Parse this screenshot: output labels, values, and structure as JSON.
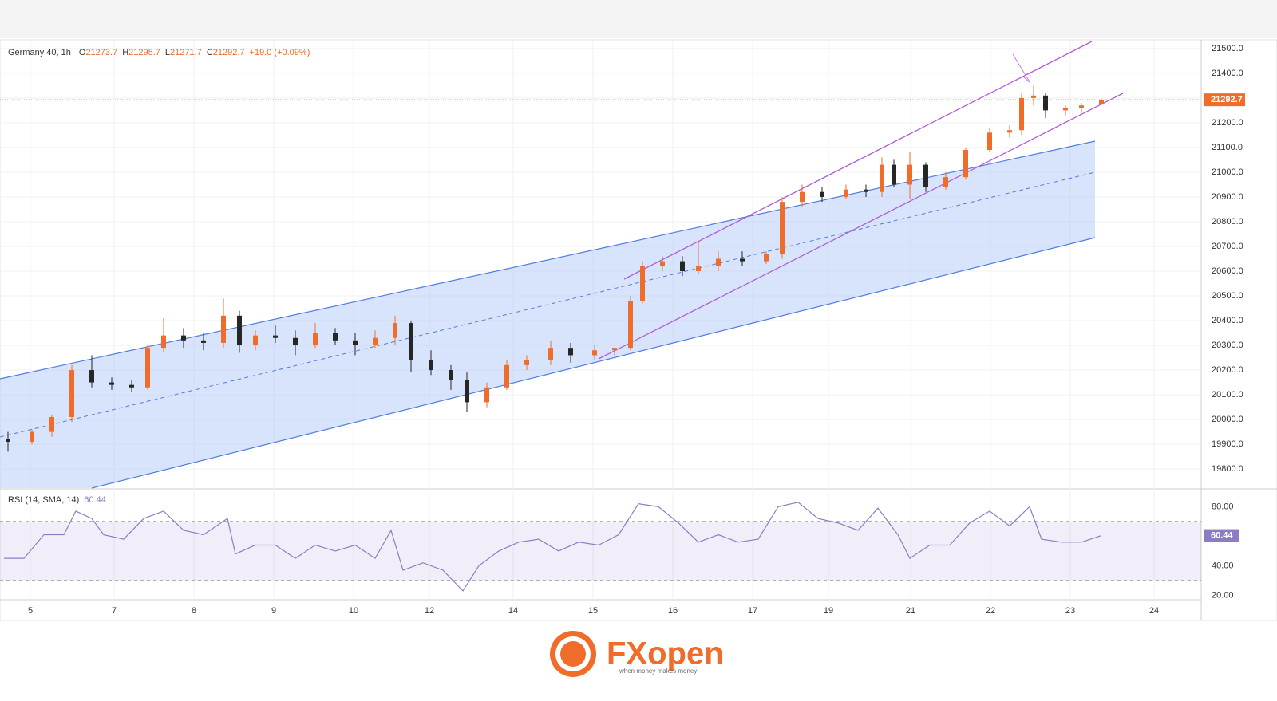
{
  "chart_data": {
    "type": "candlestick",
    "symbol": "Germany 40, 1h",
    "ohlc_labels": [
      "O",
      "H",
      "L",
      "C"
    ],
    "change": "+19.0 (+0.09%)",
    "up_color": "#ef6c2b",
    "down_color": "#262626",
    "x": [
      0.1,
      0.4,
      0.65,
      0.9,
      1.15,
      1.4,
      1.65,
      1.85,
      2.05,
      2.3,
      2.55,
      2.8,
      3.0,
      3.2,
      3.45,
      3.7,
      3.95,
      4.2,
      4.45,
      4.7,
      4.95,
      5.15,
      5.4,
      5.65,
      5.85,
      6.1,
      6.35,
      6.6,
      6.9,
      7.15,
      7.45,
      7.7,
      7.9,
      8.05,
      8.3,
      8.55,
      8.75,
      9.0,
      9.3,
      9.6,
      9.8,
      10.05,
      10.3,
      10.6,
      10.85,
      11.05,
      11.2,
      11.4,
      11.6,
      11.85,
      12.1,
      12.4,
      12.65,
      12.8,
      12.95,
      13.1,
      13.35,
      13.55,
      13.8
    ],
    "open": [
      19920,
      19910,
      19950,
      20010,
      20200,
      20150,
      20140,
      20130,
      20290,
      20340,
      20320,
      20310,
      20420,
      20300,
      20340,
      20330,
      20300,
      20350,
      20320,
      20300,
      20330,
      20390,
      20240,
      20200,
      20160,
      20070,
      20130,
      20220,
      20240,
      20290,
      20260,
      20280,
      20290,
      20480,
      20620,
      20640,
      20600,
      20620,
      20650,
      20640,
      20670,
      20880,
      20920,
      20900,
      20930,
      20920,
      21030,
      20950,
      21030,
      20940,
      20980,
      21090,
      21160,
      21170,
      21300,
      21310,
      21250,
      21260,
      21273.7
    ],
    "high": [
      19950,
      19960,
      20020,
      20220,
      20260,
      20170,
      20160,
      20300,
      20410,
      20370,
      20350,
      20490,
      20440,
      20360,
      20380,
      20360,
      20390,
      20370,
      20350,
      20360,
      20420,
      20400,
      20280,
      20220,
      20190,
      20150,
      20240,
      20260,
      20320,
      20310,
      20300,
      20290,
      20500,
      20640,
      20660,
      20660,
      20720,
      20680,
      20680,
      20680,
      20900,
      20950,
      20940,
      20950,
      20950,
      21060,
      21050,
      21080,
      21040,
      21000,
      21100,
      21180,
      21190,
      21320,
      21350,
      21320,
      21270,
      21280,
      21295.7
    ],
    "low": [
      19870,
      19900,
      19930,
      19990,
      20130,
      20120,
      20110,
      20120,
      20270,
      20290,
      20280,
      20290,
      20270,
      20280,
      20310,
      20260,
      20290,
      20300,
      20260,
      20290,
      20300,
      20190,
      20180,
      20120,
      20030,
      20050,
      20120,
      20200,
      20220,
      20230,
      20240,
      20260,
      20280,
      20470,
      20600,
      20580,
      20590,
      20600,
      20620,
      20630,
      20650,
      20860,
      20880,
      20890,
      20900,
      20900,
      20940,
      20890,
      20920,
      20930,
      20970,
      21080,
      21140,
      21150,
      21270,
      21220,
      21230,
      21240,
      21271.7
    ],
    "close": [
      19910,
      19950,
      20010,
      20200,
      20150,
      20140,
      20130,
      20290,
      20340,
      20320,
      20310,
      20420,
      20300,
      20340,
      20330,
      20300,
      20350,
      20320,
      20300,
      20330,
      20390,
      20240,
      20200,
      20160,
      20070,
      20130,
      20220,
      20240,
      20290,
      20260,
      20280,
      20290,
      20480,
      20620,
      20640,
      20600,
      20620,
      20650,
      20640,
      20670,
      20880,
      20920,
      20900,
      20930,
      20920,
      21030,
      20950,
      21030,
      20940,
      20980,
      21090,
      21160,
      21170,
      21300,
      21310,
      21250,
      21260,
      21270,
      21292.7
    ],
    "xlim": [
      0,
      15.05
    ],
    "xticks": [
      {
        "value": 0.38,
        "label": "5"
      },
      {
        "value": 1.43,
        "label": "7"
      },
      {
        "value": 2.43,
        "label": "8"
      },
      {
        "value": 3.43,
        "label": "9"
      },
      {
        "value": 4.43,
        "label": "10"
      },
      {
        "value": 5.38,
        "label": "12"
      },
      {
        "value": 6.43,
        "label": "14"
      },
      {
        "value": 7.43,
        "label": "15"
      },
      {
        "value": 8.43,
        "label": "16"
      },
      {
        "value": 9.43,
        "label": "17"
      },
      {
        "value": 10.38,
        "label": "19"
      },
      {
        "value": 11.41,
        "label": "21"
      },
      {
        "value": 12.41,
        "label": "22"
      },
      {
        "value": 13.41,
        "label": "23"
      },
      {
        "value": 14.46,
        "label": "24"
      }
    ],
    "ylim": [
      19723,
      21535
    ],
    "yticks": [
      {
        "value": 19800,
        "label": "19800.0"
      },
      {
        "value": 19900,
        "label": "19900.0"
      },
      {
        "value": 20000,
        "label": "20000.0"
      },
      {
        "value": 20100,
        "label": "20100.0"
      },
      {
        "value": 20200,
        "label": "20200.0"
      },
      {
        "value": 20300,
        "label": "20300.0"
      },
      {
        "value": 20400,
        "label": "20400.0"
      },
      {
        "value": 20500,
        "label": "20500.0"
      },
      {
        "value": 20600,
        "label": "20600.0"
      },
      {
        "value": 20700,
        "label": "20700.0"
      },
      {
        "value": 20800,
        "label": "20800.0"
      },
      {
        "value": 20900,
        "label": "20900.0"
      },
      {
        "value": 21000,
        "label": "21000.0"
      },
      {
        "value": 21100,
        "label": "21100.0"
      },
      {
        "value": 21200,
        "label": "21200.0"
      },
      {
        "value": 21300,
        "label": "21300.0"
      },
      {
        "value": 21400,
        "label": "21400.0"
      },
      {
        "value": 21500,
        "label": "21500.0"
      }
    ],
    "grid": true,
    "rsi": {
      "name": "RSI (14, SMA, 14)",
      "color": "#8e7cc3",
      "x": [
        0.05,
        0.3,
        0.55,
        0.8,
        0.95,
        1.15,
        1.3,
        1.55,
        1.8,
        2.05,
        2.3,
        2.55,
        2.85,
        2.95,
        3.2,
        3.45,
        3.7,
        3.95,
        4.2,
        4.45,
        4.7,
        4.9,
        5.05,
        5.3,
        5.55,
        5.8,
        6.0,
        6.25,
        6.5,
        6.75,
        7.0,
        7.25,
        7.5,
        7.75,
        8.0,
        8.25,
        8.5,
        8.75,
        9.0,
        9.25,
        9.5,
        9.75,
        10.0,
        10.25,
        10.5,
        10.75,
        11.0,
        11.25,
        11.4,
        11.65,
        11.9,
        12.15,
        12.4,
        12.65,
        12.9,
        13.05,
        13.3,
        13.55,
        13.8
      ],
      "values": [
        45,
        45,
        61,
        61,
        77,
        72,
        61,
        58,
        72,
        77,
        64,
        61,
        72,
        48,
        54,
        54,
        45,
        54,
        50,
        54,
        45,
        64,
        37,
        42,
        37,
        23,
        40,
        50,
        56,
        58,
        50,
        56,
        54,
        61,
        82,
        80,
        69,
        56,
        61,
        56,
        58,
        80,
        83,
        72,
        69,
        64,
        79,
        61,
        45,
        54,
        54,
        69,
        77,
        67,
        80,
        58,
        56,
        56,
        60.44
      ],
      "ylim": [
        17,
        91
      ],
      "yticks": [
        {
          "value": 20,
          "label": "20.00"
        },
        {
          "value": 40,
          "label": "40.00"
        },
        {
          "value": 80,
          "label": "80.00"
        }
      ],
      "bands": [
        30,
        70
      ]
    },
    "brand": {
      "name": "FXopen",
      "tagline": "when money makes money"
    }
  }
}
